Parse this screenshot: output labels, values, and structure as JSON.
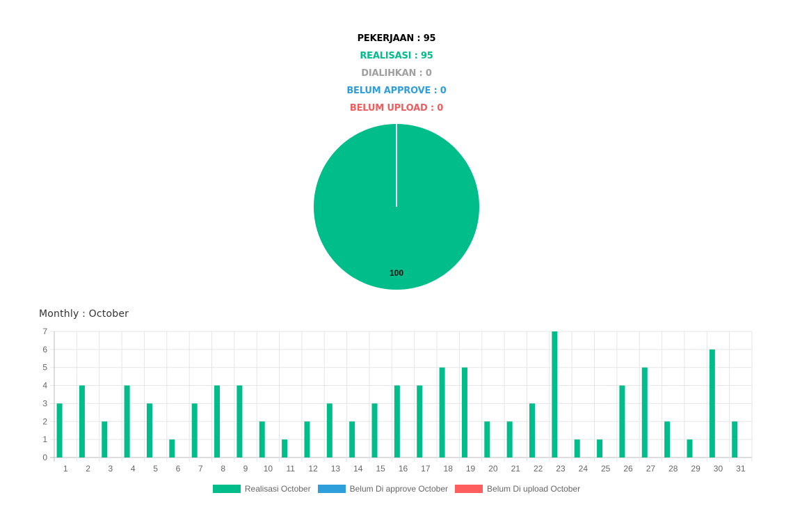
{
  "summary": [
    {
      "label": "PEKERJAAN",
      "value": "95",
      "color": "#000000"
    },
    {
      "label": "REALISASI",
      "value": "95",
      "color": "#00BD8A"
    },
    {
      "label": "DIALIHKAN",
      "value": "0",
      "color": "#A0A0A0"
    },
    {
      "label": "BELUM APPROVE",
      "value": "0",
      "color": "#2F9FDC"
    },
    {
      "label": "BELUM UPLOAD",
      "value": "0",
      "color": "#F05D5E"
    }
  ],
  "monthly_title": "Monthly : October",
  "chart_data": [
    {
      "type": "pie",
      "slices": [
        {
          "value": 100,
          "label": "100",
          "color": "#00BD8A"
        }
      ]
    },
    {
      "type": "bar",
      "categories": [
        "1",
        "2",
        "3",
        "4",
        "5",
        "6",
        "7",
        "8",
        "9",
        "10",
        "11",
        "12",
        "13",
        "14",
        "15",
        "16",
        "17",
        "18",
        "19",
        "20",
        "21",
        "22",
        "23",
        "24",
        "25",
        "26",
        "27",
        "28",
        "29",
        "30",
        "31"
      ],
      "series": [
        {
          "name": "Realisasi October",
          "color": "#00BD8A",
          "values": [
            3,
            4,
            2,
            4,
            3,
            1,
            3,
            4,
            4,
            2,
            1,
            2,
            3,
            2,
            3,
            4,
            4,
            5,
            5,
            2,
            2,
            3,
            7,
            1,
            1,
            4,
            5,
            2,
            1,
            6,
            2
          ]
        },
        {
          "name": "Belum Di approve October",
          "color": "#2F9FDC",
          "values": [
            0,
            0,
            0,
            0,
            0,
            0,
            0,
            0,
            0,
            0,
            0,
            0,
            0,
            0,
            0,
            0,
            0,
            0,
            0,
            0,
            0,
            0,
            0,
            0,
            0,
            0,
            0,
            0,
            0,
            0,
            0
          ]
        },
        {
          "name": "Belum Di upload October",
          "color": "#FF5E5E",
          "values": [
            0,
            0,
            0,
            0,
            0,
            0,
            0,
            0,
            0,
            0,
            0,
            0,
            0,
            0,
            0,
            0,
            0,
            0,
            0,
            0,
            0,
            0,
            0,
            0,
            0,
            0,
            0,
            0,
            0,
            0,
            0
          ]
        }
      ],
      "yticks": [
        "0",
        "1",
        "2",
        "3",
        "4",
        "5",
        "6",
        "7"
      ],
      "ylim": [
        0,
        7
      ],
      "grid": true,
      "legend": "bottom"
    }
  ]
}
